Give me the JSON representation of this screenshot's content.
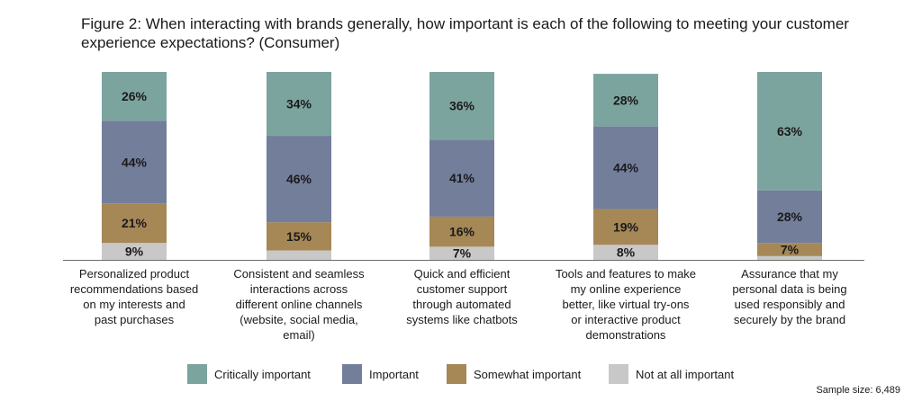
{
  "title": "Figure 2: When interacting with brands generally, how important is each of the following to meeting your customer experience expectations? (Consumer)",
  "sample_size": "Sample size: 6,489",
  "colors": {
    "critically": "#7ca49f",
    "important": "#737e9b",
    "somewhat": "#a68756",
    "not_at_all": "#c8c8c8",
    "baseline": "#6b6b6b"
  },
  "chart_data": {
    "type": "bar",
    "stacked": true,
    "orientation": "vertical",
    "unit": "%",
    "categories": [
      "Personalized product\nrecommendations based\non my interests and\npast purchases",
      "Consistent and seamless\ninteractions across\ndifferent online channels\n(website, social media,\nemail)",
      "Quick and efficient\ncustomer support\nthrough automated\nsystems like chatbots",
      "Tools and features to make\nmy online experience\nbetter, like virtual try-ons\nor interactive product\ndemonstrations",
      "Assurance that my\npersonal data is being\nused responsibly and\nsecurely by the brand"
    ],
    "series": [
      {
        "name": "Not at all important",
        "color_key": "not_at_all",
        "values": [
          9,
          5,
          7,
          8,
          2
        ],
        "labels": [
          "9%",
          "",
          "7%",
          "8%",
          ""
        ]
      },
      {
        "name": "Somewhat important",
        "color_key": "somewhat",
        "values": [
          21,
          15,
          16,
          19,
          7
        ],
        "labels": [
          "21%",
          "15%",
          "16%",
          "19%",
          "7%"
        ]
      },
      {
        "name": "Important",
        "color_key": "important",
        "values": [
          44,
          46,
          41,
          44,
          28
        ],
        "labels": [
          "44%",
          "46%",
          "41%",
          "44%",
          "28%"
        ]
      },
      {
        "name": "Critically important",
        "color_key": "critically",
        "values": [
          26,
          34,
          36,
          28,
          63
        ],
        "labels": [
          "26%",
          "34%",
          "36%",
          "28%",
          "63%"
        ]
      }
    ],
    "legend": [
      "Critically important",
      "Important",
      "Somewhat important",
      "Not at all important"
    ],
    "legend_position": "bottom",
    "grid": false
  }
}
